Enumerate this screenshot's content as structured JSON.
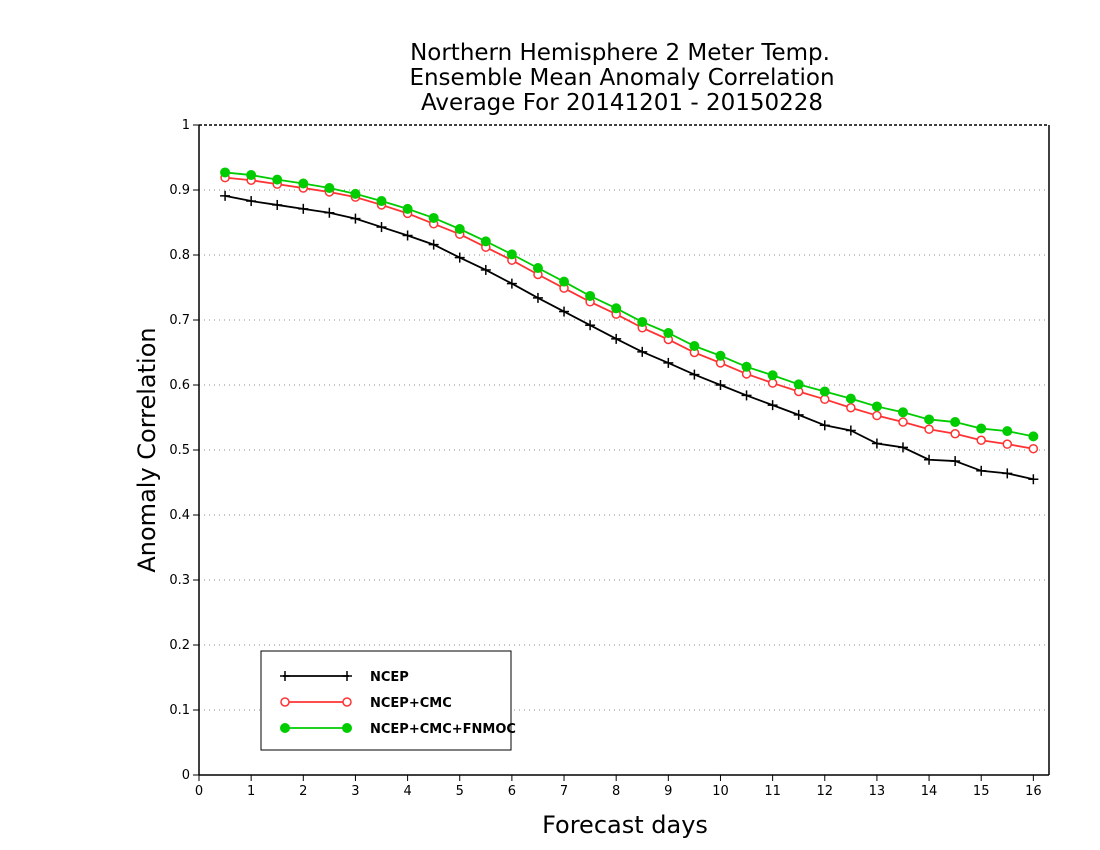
{
  "chart_data": {
    "type": "line",
    "title": [
      "Northern Hemisphere 2 Meter Temp.",
      "Ensemble Mean Anomaly Correlation",
      "Average For 20141201 - 20150228"
    ],
    "xlabel": "Forecast days",
    "ylabel": "Anomaly Correlation",
    "xlim": [
      0,
      16.3
    ],
    "ylim": [
      0,
      1
    ],
    "xticks": [
      0,
      1,
      2,
      3,
      4,
      5,
      6,
      7,
      8,
      9,
      10,
      11,
      12,
      13,
      14,
      15,
      16
    ],
    "yticks": [
      0,
      0.1,
      0.2,
      0.3,
      0.4,
      0.5,
      0.6,
      0.7,
      0.8,
      0.9,
      1
    ],
    "grid": "horizontal-dotted",
    "legend_position": "bottom-left",
    "x": [
      0.5,
      1.0,
      1.5,
      2.0,
      2.5,
      3.0,
      3.5,
      4.0,
      4.5,
      5.0,
      5.5,
      6.0,
      6.5,
      7.0,
      7.5,
      8.0,
      8.5,
      9.0,
      9.5,
      10.0,
      10.5,
      11.0,
      11.5,
      12.0,
      12.5,
      13.0,
      13.5,
      14.0,
      14.5,
      15.0,
      15.5,
      16.0
    ],
    "series": [
      {
        "name": "NCEP",
        "color": "#000000",
        "marker": "plus",
        "values": [
          0.891,
          0.883,
          0.877,
          0.871,
          0.865,
          0.856,
          0.843,
          0.83,
          0.816,
          0.796,
          0.777,
          0.756,
          0.734,
          0.713,
          0.692,
          0.671,
          0.651,
          0.634,
          0.616,
          0.6,
          0.584,
          0.569,
          0.554,
          0.538,
          0.53,
          0.51,
          0.504,
          0.485,
          0.483,
          0.468,
          0.464,
          0.455
        ]
      },
      {
        "name": "NCEP+CMC",
        "color": "#ff3333",
        "marker": "open-circle",
        "values": [
          0.919,
          0.915,
          0.909,
          0.903,
          0.897,
          0.889,
          0.877,
          0.864,
          0.848,
          0.832,
          0.812,
          0.792,
          0.77,
          0.749,
          0.728,
          0.709,
          0.688,
          0.67,
          0.65,
          0.634,
          0.617,
          0.603,
          0.59,
          0.578,
          0.565,
          0.553,
          0.543,
          0.532,
          0.525,
          0.515,
          0.509,
          0.502
        ]
      },
      {
        "name": "NCEP+CMC+FNMOC",
        "color": "#00cc00",
        "marker": "filled-circle",
        "values": [
          0.927,
          0.923,
          0.916,
          0.91,
          0.903,
          0.894,
          0.883,
          0.871,
          0.857,
          0.84,
          0.821,
          0.801,
          0.78,
          0.759,
          0.737,
          0.718,
          0.697,
          0.68,
          0.66,
          0.645,
          0.628,
          0.615,
          0.601,
          0.59,
          0.579,
          0.567,
          0.558,
          0.547,
          0.543,
          0.533,
          0.529,
          0.521
        ]
      }
    ]
  }
}
